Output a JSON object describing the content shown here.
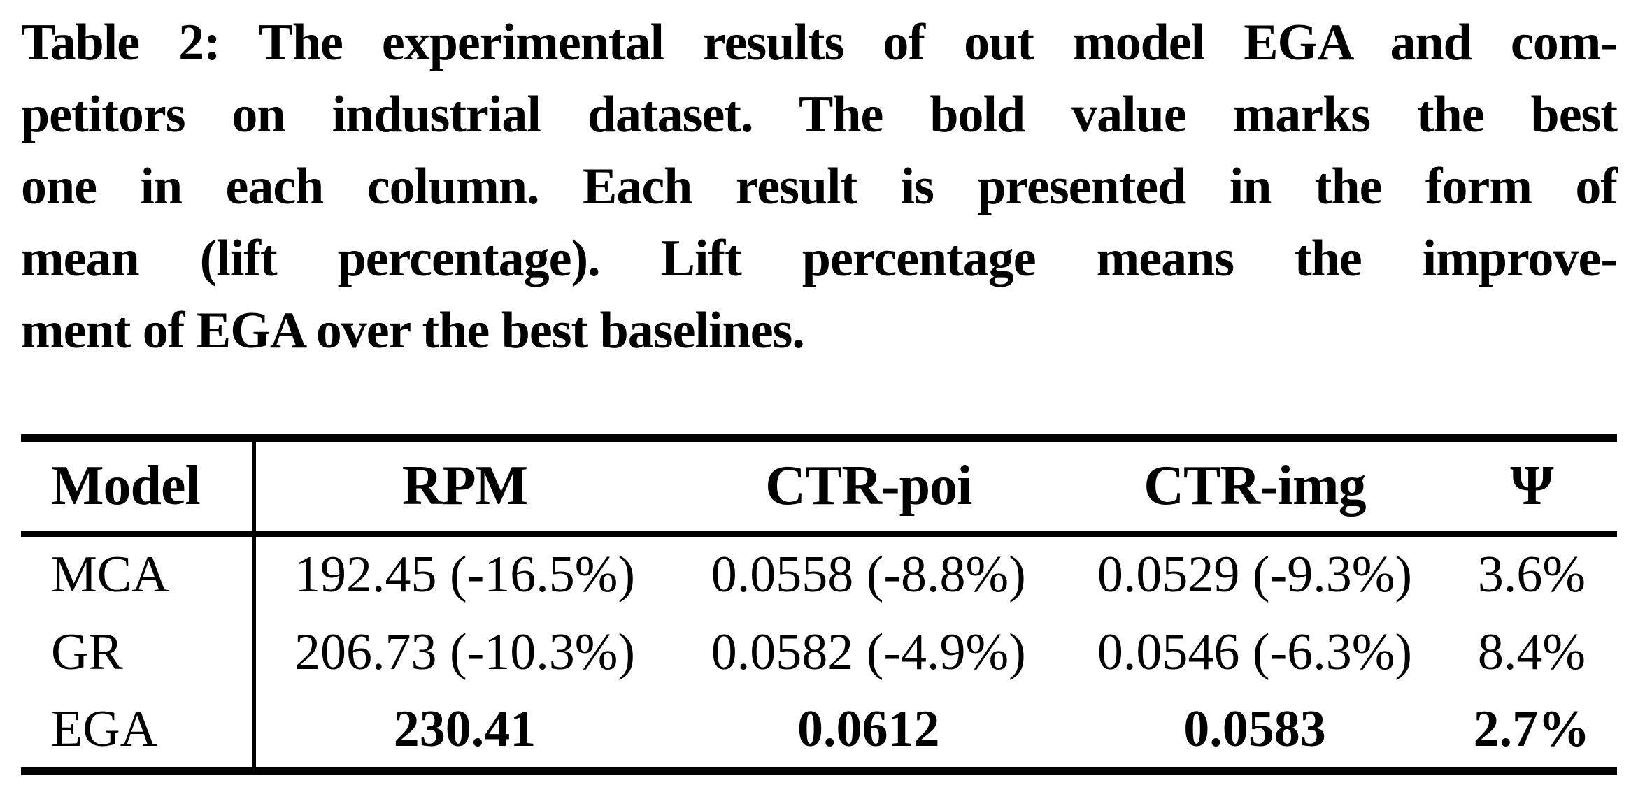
{
  "caption": {
    "label": "table-2-caption",
    "lines": [
      "Table 2: The experimental results of out model EGA and com-",
      "petitors on industrial dataset. The bold value marks the best",
      "one in each column. Each result is presented in the form of",
      "mean (lift percentage). Lift percentage means the improve-",
      "ment of EGA over the best baselines."
    ]
  },
  "table": {
    "headers": [
      "Model",
      "RPM",
      "CTR-poi",
      "CTR-img",
      "Ψ"
    ],
    "rows": [
      {
        "best": false,
        "cells": [
          "MCA",
          "192.45 (-16.5%)",
          "0.0558 (-8.8%)",
          "0.0529 (-9.3%)",
          "3.6%"
        ]
      },
      {
        "best": false,
        "cells": [
          "GR",
          "206.73 (-10.3%)",
          "0.0582 (-4.9%)",
          "0.0546 (-6.3%)",
          "8.4%"
        ]
      },
      {
        "best": true,
        "cells": [
          "EGA",
          "230.41",
          "0.0612",
          "0.0583",
          "2.7%"
        ]
      }
    ]
  },
  "colors": {
    "text": "#000000",
    "background": "#ffffff",
    "rule": "#000000"
  }
}
